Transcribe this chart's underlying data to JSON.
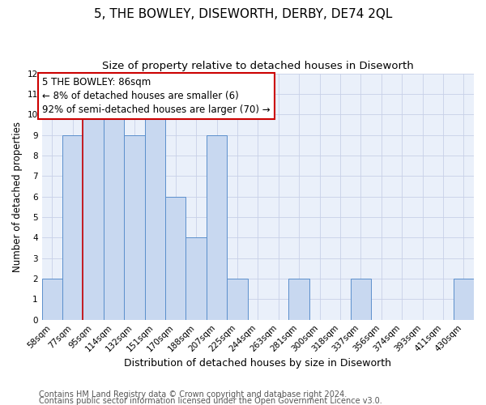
{
  "title": "5, THE BOWLEY, DISEWORTH, DERBY, DE74 2QL",
  "subtitle": "Size of property relative to detached houses in Diseworth",
  "xlabel": "Distribution of detached houses by size in Diseworth",
  "ylabel": "Number of detached properties",
  "categories": [
    "58sqm",
    "77sqm",
    "95sqm",
    "114sqm",
    "132sqm",
    "151sqm",
    "170sqm",
    "188sqm",
    "207sqm",
    "225sqm",
    "244sqm",
    "263sqm",
    "281sqm",
    "300sqm",
    "318sqm",
    "337sqm",
    "356sqm",
    "374sqm",
    "393sqm",
    "411sqm",
    "430sqm"
  ],
  "values": [
    2,
    9,
    10,
    10,
    9,
    10,
    6,
    4,
    9,
    2,
    0,
    0,
    2,
    0,
    0,
    2,
    0,
    0,
    0,
    0,
    2
  ],
  "bar_color": "#c8d8f0",
  "bar_edge_color": "#5b8fcc",
  "grid_color": "#c8d0e8",
  "background_color": "#eaf0fa",
  "ylim": [
    0,
    12
  ],
  "yticks": [
    0,
    1,
    2,
    3,
    4,
    5,
    6,
    7,
    8,
    9,
    10,
    11,
    12
  ],
  "red_line_x": 1.5,
  "annotation_text": "5 THE BOWLEY: 86sqm\n← 8% of detached houses are smaller (6)\n92% of semi-detached houses are larger (70) →",
  "annotation_box_color": "#cc0000",
  "footnote1": "Contains HM Land Registry data © Crown copyright and database right 2024.",
  "footnote2": "Contains public sector information licensed under the Open Government Licence v3.0.",
  "title_fontsize": 11,
  "subtitle_fontsize": 9.5,
  "xlabel_fontsize": 9,
  "ylabel_fontsize": 8.5,
  "tick_fontsize": 7.5,
  "annotation_fontsize": 8.5,
  "footnote_fontsize": 7
}
